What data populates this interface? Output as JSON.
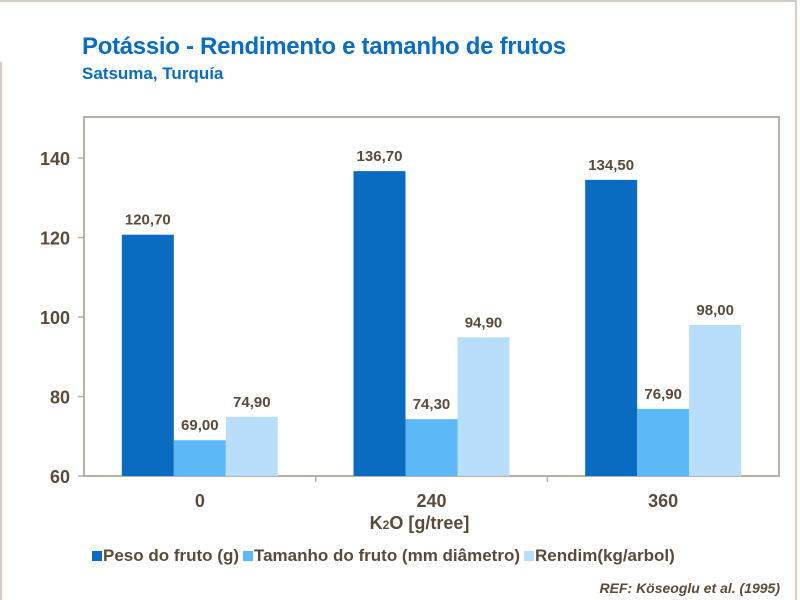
{
  "chart_data": {
    "type": "bar",
    "title": "Potássio - Rendimento e tamanho de frutos",
    "subtitle": "Satsuma, Turquía",
    "xlabel": "K2O [g/tree]",
    "ylabel": "",
    "categories": [
      "0",
      "240",
      "360"
    ],
    "ylim": [
      60,
      150
    ],
    "yticks": [
      60,
      80,
      100,
      120,
      140
    ],
    "grid": false,
    "legend": "bottom",
    "series": [
      {
        "name": "Peso do fruto (g)",
        "color": "#0a6cc0",
        "values": [
          120.7,
          136.7,
          134.5
        ],
        "labels": [
          "120,70",
          "136,70",
          "134,50"
        ]
      },
      {
        "name": "Tamanho do fruto (mm diâmetro)",
        "color": "#5db8f8",
        "values": [
          69.0,
          74.3,
          76.9
        ],
        "labels": [
          "69,00",
          "74,30",
          "76,90"
        ]
      },
      {
        "name": "Rendim(kg/arbol)",
        "color": "#b9defc",
        "values": [
          74.9,
          94.9,
          98.0
        ],
        "labels": [
          "74,90",
          "94,90",
          "98,00"
        ]
      }
    ],
    "reference": "REF: Köseoglu  et al. (1995)"
  }
}
